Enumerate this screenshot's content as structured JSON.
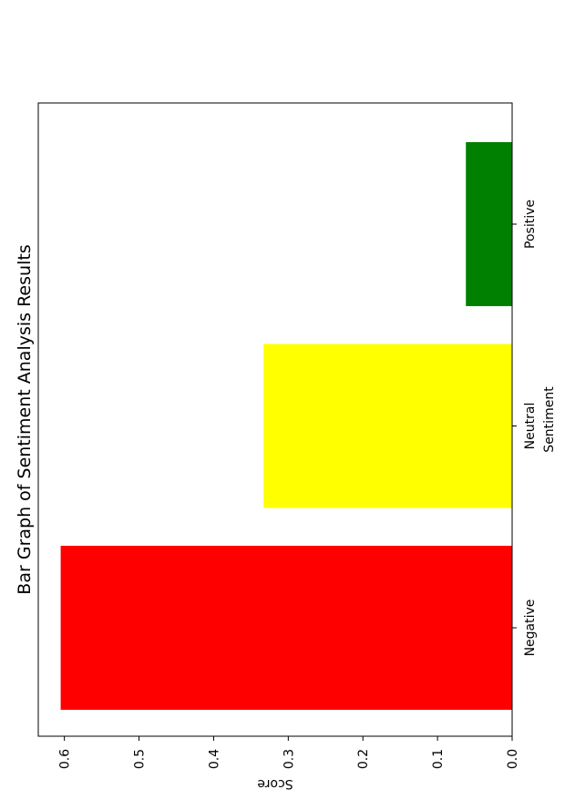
{
  "chart_data": {
    "type": "bar",
    "orientation": "rotated-horizontal",
    "title": "Bar Graph of Sentiment Analysis Results",
    "xlabel": "Sentiment",
    "ylabel": "Score",
    "categories": [
      "Negative",
      "Neutral",
      "Positive"
    ],
    "values": [
      0.605,
      0.333,
      0.062
    ],
    "colors": [
      "#ff0000",
      "#ffff00",
      "#008000"
    ],
    "ylim": [
      0,
      0.635
    ],
    "yticks": [
      "0.0",
      "0.1",
      "0.2",
      "0.3",
      "0.4",
      "0.5",
      "0.6"
    ],
    "grid": false
  }
}
